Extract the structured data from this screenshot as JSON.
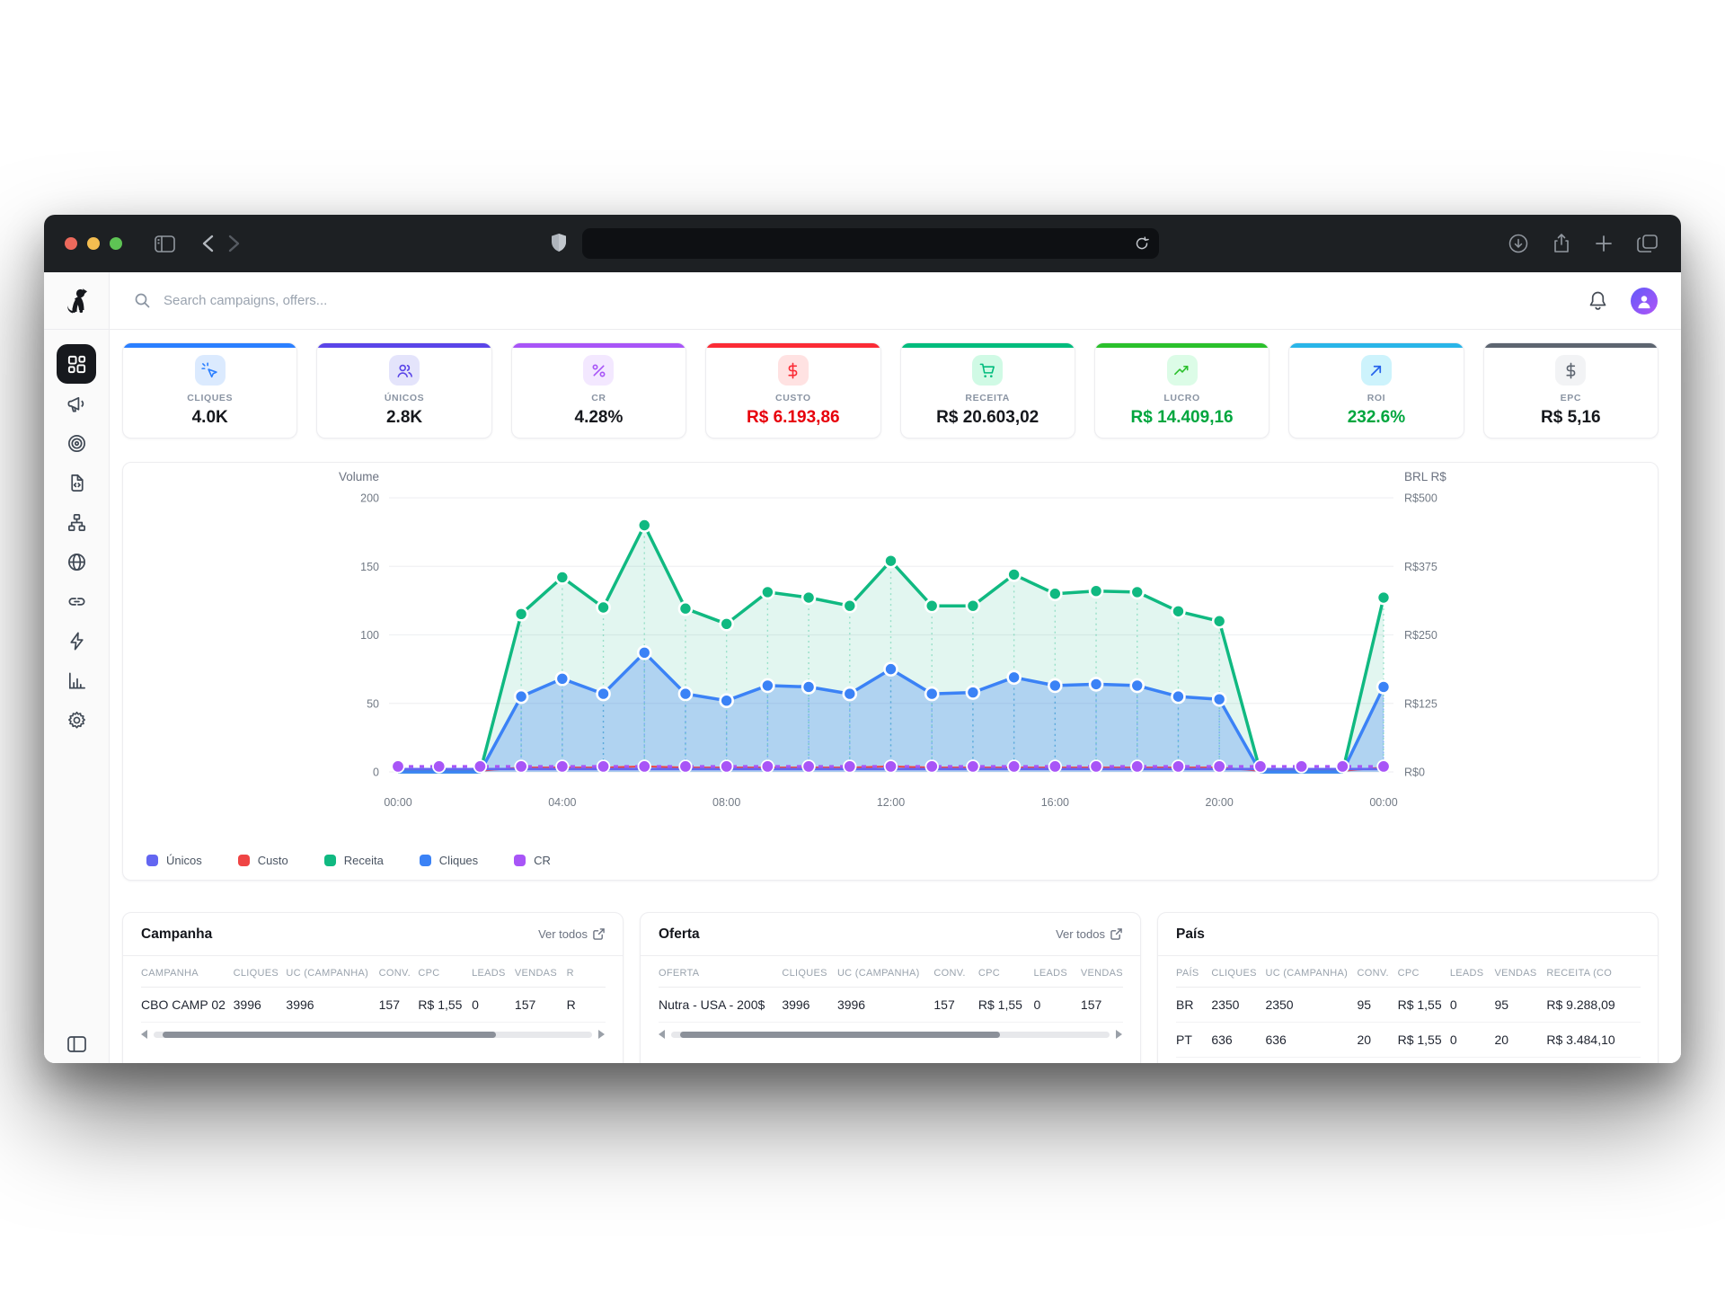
{
  "browser": {
    "url_value": "",
    "traffic_lights": {
      "close": "#ec695c",
      "minimize": "#f4bd50",
      "zoom": "#5ec454"
    }
  },
  "header": {
    "search_placeholder": "Search campaigns, offers..."
  },
  "sidebar": {
    "items": [
      "dashboard",
      "campaigns",
      "offers",
      "landing-pages",
      "funnels",
      "domains",
      "links",
      "automation",
      "reports",
      "settings"
    ]
  },
  "kpis": [
    {
      "label": "CLIQUES",
      "value": "4.0K",
      "icon": "cursor-click-icon",
      "accent": "#2b7fff",
      "tint": "#dbeafe"
    },
    {
      "label": "ÚNICOS",
      "value": "2.8K",
      "icon": "users-icon",
      "accent": "#5a45e8",
      "tint": "#e4e4fb"
    },
    {
      "label": "CR",
      "value": "4.28%",
      "icon": "percent-icon",
      "accent": "#a855f7",
      "tint": "#f3e8ff"
    },
    {
      "label": "CUSTO",
      "value": "R$ 6.193,86",
      "icon": "dollar-icon",
      "accent": "#fb2c36",
      "tint": "#ffe2e2",
      "value_color": "#e7000b"
    },
    {
      "label": "RECEITA",
      "value": "R$ 20.603,02",
      "icon": "cart-icon",
      "accent": "#00bc7d",
      "tint": "#d0fae5"
    },
    {
      "label": "LUCRO",
      "value": "R$ 14.409,16",
      "icon": "trending-up-icon",
      "accent": "#2bc02c",
      "tint": "#dcfce7",
      "value_color": "#00a63e"
    },
    {
      "label": "ROI",
      "value": "232.6%",
      "icon": "arrow-up-right-icon",
      "accent": "#29b5e8",
      "tint": "#cdf3fc",
      "value_color": "#00a63e"
    },
    {
      "label": "EPC",
      "value": "R$ 5,16",
      "icon": "dollar-icon",
      "accent": "#5d6570",
      "tint": "#f2f3f5"
    }
  ],
  "chart_data": {
    "type": "line",
    "title_left_axis": "Volume",
    "title_right_axis": "BRL R$",
    "left_ticks": [
      "200",
      "150",
      "100",
      "50",
      "0"
    ],
    "right_ticks": [
      "R$500",
      "R$375",
      "R$250",
      "R$125",
      "R$0"
    ],
    "x_tick_labels": [
      "00:00",
      "04:00",
      "08:00",
      "12:00",
      "16:00",
      "20:00",
      "00:00"
    ],
    "ylim_left": [
      0,
      200
    ],
    "ylim_right": [
      0,
      500
    ],
    "x_interval": "1 hour, 00:00 to 24:00",
    "series": [
      {
        "name": "Receita",
        "color": "#10b981",
        "axis": "right",
        "fill": true,
        "dots": true,
        "values": [
          0,
          0,
          0,
          288,
          355,
          300,
          450,
          298,
          270,
          328,
          318,
          303,
          385,
          303,
          303,
          360,
          325,
          330,
          328,
          293,
          275,
          0,
          0,
          0,
          318
        ]
      },
      {
        "name": "Cliques",
        "color": "#3b82f6",
        "axis": "left",
        "fill": true,
        "dots": true,
        "values": [
          0,
          0,
          0,
          55,
          68,
          57,
          87,
          57,
          52,
          63,
          62,
          57,
          75,
          57,
          58,
          69,
          63,
          64,
          63,
          55,
          53,
          0,
          0,
          0,
          62
        ]
      },
      {
        "name": "Únicos",
        "color": "#6366f1",
        "axis": "left",
        "fill": false,
        "dots": false,
        "values": [
          2,
          2,
          2,
          2,
          2,
          2,
          2,
          2,
          2,
          2,
          2,
          2,
          2,
          2,
          2,
          2,
          2,
          2,
          2,
          2,
          2,
          2,
          2,
          2,
          2
        ]
      },
      {
        "name": "Custo",
        "color": "#ef4444",
        "axis": "right",
        "fill": false,
        "dots": false,
        "values": [
          2,
          2,
          2,
          8,
          8,
          8,
          10,
          8,
          8,
          8,
          8,
          8,
          10,
          8,
          8,
          8,
          8,
          8,
          8,
          8,
          8,
          2,
          2,
          2,
          8
        ]
      },
      {
        "name": "CR",
        "color": "#a855f7",
        "axis": "left",
        "fill": false,
        "dots": true,
        "dashed": true,
        "values": [
          4,
          4,
          4,
          4,
          4,
          4,
          4,
          4,
          4,
          4,
          4,
          4,
          4,
          4,
          4,
          4,
          4,
          4,
          4,
          4,
          4,
          4,
          4,
          4,
          4
        ]
      }
    ],
    "legend": [
      {
        "label": "Únicos",
        "color": "#6366f1"
      },
      {
        "label": "Custo",
        "color": "#ef4444"
      },
      {
        "label": "Receita",
        "color": "#10b981"
      },
      {
        "label": "Cliques",
        "color": "#3b82f6"
      },
      {
        "label": "CR",
        "color": "#a855f7"
      }
    ]
  },
  "tables": {
    "campanha": {
      "title": "Campanha",
      "link": "Ver todos",
      "headers": [
        "CAMPANHA",
        "CLIQUES",
        "UC (CAMPANHA)",
        "CONV.",
        "CPC",
        "LEADS",
        "VENDAS",
        "R"
      ],
      "rows": [
        [
          "CBO CAMP 02",
          "3996",
          "3996",
          "157",
          "R$ 1,55",
          "0",
          "157",
          "R"
        ]
      ]
    },
    "oferta": {
      "title": "Oferta",
      "link": "Ver todos",
      "headers": [
        "OFERTA",
        "CLIQUES",
        "UC (CAMPANHA)",
        "CONV.",
        "CPC",
        "LEADS",
        "VENDAS"
      ],
      "rows": [
        [
          "Nutra - USA - 200$",
          "3996",
          "3996",
          "157",
          "R$ 1,55",
          "0",
          "157"
        ]
      ]
    },
    "pais": {
      "title": "País",
      "headers": [
        "PAÍS",
        "CLIQUES",
        "UC (CAMPANHA)",
        "CONV.",
        "CPC",
        "LEADS",
        "VENDAS",
        "RECEITA (CO"
      ],
      "rows": [
        [
          "BR",
          "2350",
          "2350",
          "95",
          "R$ 1,55",
          "0",
          "95",
          "R$ 9.288,09"
        ],
        [
          "PT",
          "636",
          "636",
          "20",
          "R$ 1,55",
          "0",
          "20",
          "R$ 3.484,10"
        ]
      ]
    }
  }
}
